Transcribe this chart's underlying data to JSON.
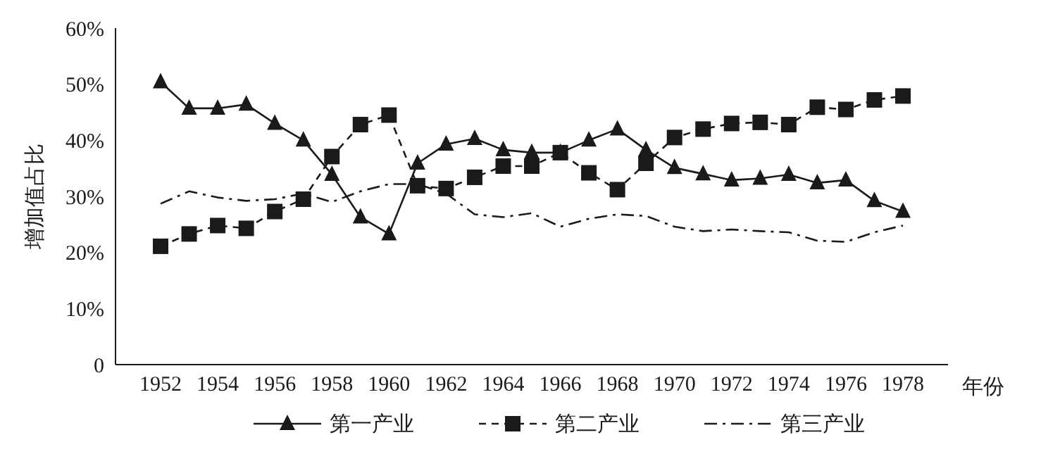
{
  "chart_data": {
    "type": "line",
    "xlabel": "年份",
    "ylabel": "增加值占比",
    "categories": [
      "1952",
      null,
      "1954",
      null,
      "1956",
      null,
      "1958",
      null,
      "1960",
      null,
      "1962",
      null,
      "1964",
      null,
      "1966",
      null,
      "1968",
      null,
      "1970",
      null,
      "1972",
      null,
      "1974",
      null,
      "1976",
      null,
      "1978"
    ],
    "ylim": [
      0,
      60
    ],
    "yticks": [
      0,
      {
        "value": 10,
        "label": "10%"
      },
      {
        "value": 20,
        "label": "20%"
      },
      {
        "value": 30,
        "label": "30%"
      },
      {
        "value": 40,
        "label": "40%"
      },
      {
        "value": 50,
        "label": "50%"
      },
      {
        "value": 60,
        "label": "60%"
      }
    ],
    "legend": "bottom",
    "series": [
      {
        "name": "第一产业",
        "color": "#1a1a1a",
        "marker": "triangle",
        "line_style": "solid",
        "values": [
          50.4,
          45.7,
          45.7,
          46.4,
          43.0,
          40.0,
          33.9,
          26.3,
          23.3,
          35.9,
          39.3,
          40.3,
          38.3,
          37.8,
          37.8,
          40.0,
          42.0,
          38.3,
          35.1,
          34.0,
          32.9,
          33.2,
          33.9,
          32.4,
          32.9,
          29.2,
          27.3
        ]
      },
      {
        "name": "第二产业",
        "color": "#1a1a1a",
        "marker": "square",
        "line_style": "dashed",
        "values": [
          21.1,
          23.3,
          24.8,
          24.3,
          27.3,
          29.5,
          37.1,
          42.8,
          44.5,
          31.9,
          31.4,
          33.4,
          35.4,
          35.4,
          37.8,
          34.2,
          31.2,
          35.9,
          40.5,
          42.0,
          43.0,
          43.2,
          42.8,
          45.9,
          45.5,
          47.2,
          47.9
        ]
      },
      {
        "name": "第三产业",
        "color": "#1a1a1a",
        "marker": "none",
        "line_style": "dashdot",
        "values": [
          28.7,
          30.9,
          29.8,
          29.2,
          29.5,
          30.5,
          29.0,
          30.9,
          32.2,
          32.2,
          30.5,
          26.8,
          26.3,
          27.0,
          24.6,
          26.0,
          26.8,
          26.5,
          24.6,
          23.8,
          24.1,
          23.8,
          23.6,
          22.1,
          21.9,
          23.6,
          24.8
        ]
      }
    ]
  }
}
